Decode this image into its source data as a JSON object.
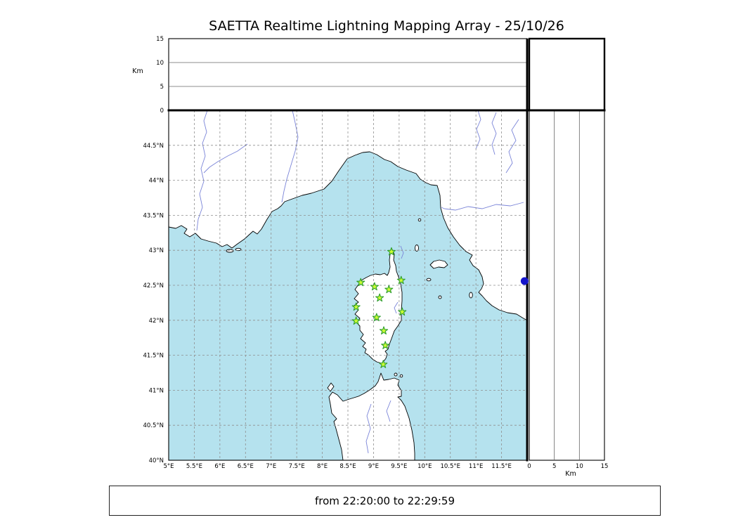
{
  "title": "SAETTA Realtime Lightning Mapping Array - 25/10/26",
  "footer": {
    "time_range": "from 22:20:00 to 22:29:59"
  },
  "altitude_axis": {
    "unit": "Km",
    "max_km": 15,
    "tick_values": [
      0,
      5,
      10,
      15
    ],
    "tick_labels": [
      "0",
      "5",
      "10",
      "15"
    ],
    "gridline_values": [
      5,
      10
    ]
  },
  "map": {
    "lon_min": 5,
    "lon_max": 12,
    "lat_min": 40,
    "lat_max": 45,
    "grid_step_deg": 0.5,
    "lon_tick_labels": [
      "5°E",
      "5.5°E",
      "6°E",
      "6.5°E",
      "7°E",
      "7.5°E",
      "8°E",
      "8.5°E",
      "9°E",
      "9.5°E",
      "10°E",
      "10.5°E",
      "11°E",
      "11.5°E"
    ],
    "lat_tick_labels": [
      "40°N",
      "40.5°N",
      "41°N",
      "41.5°N",
      "42°N",
      "42.5°N",
      "43°N",
      "43.5°N",
      "44°N",
      "44.5°N"
    ],
    "colors": {
      "sea": "#b5e2ee",
      "land": "#ffffff",
      "coast": "#000000",
      "grid": "#8f8f8f",
      "river": "#7a84d8"
    }
  },
  "stations": {
    "marker": "star",
    "color_fill": "#ccff33",
    "color_stroke": "#2f9e2f",
    "points": [
      {
        "lon": 9.35,
        "lat": 42.98
      },
      {
        "lon": 8.75,
        "lat": 42.54
      },
      {
        "lon": 9.02,
        "lat": 42.48
      },
      {
        "lon": 9.3,
        "lat": 42.44
      },
      {
        "lon": 9.54,
        "lat": 42.57
      },
      {
        "lon": 9.12,
        "lat": 42.32
      },
      {
        "lon": 8.66,
        "lat": 42.19
      },
      {
        "lon": 9.56,
        "lat": 42.12
      },
      {
        "lon": 8.66,
        "lat": 41.99
      },
      {
        "lon": 9.06,
        "lat": 42.04
      },
      {
        "lon": 9.2,
        "lat": 41.85
      },
      {
        "lon": 9.23,
        "lat": 41.64
      },
      {
        "lon": 9.19,
        "lat": 41.37
      }
    ]
  },
  "edge_marker": {
    "lon": 11.95,
    "lat": 42.56,
    "color": "#1515cc"
  }
}
